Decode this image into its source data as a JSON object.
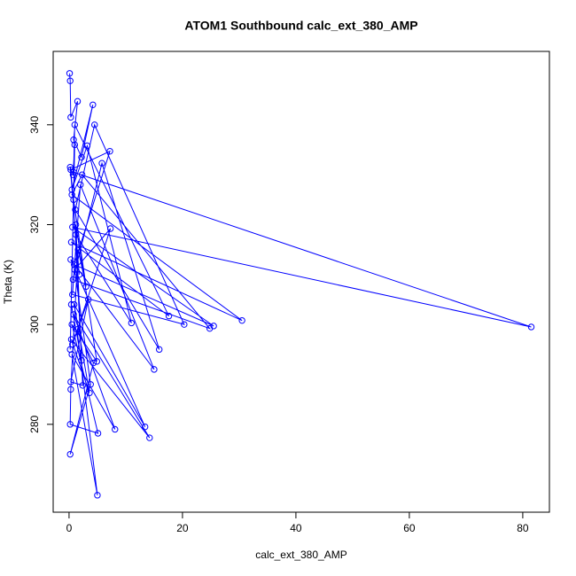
{
  "chart_data": {
    "type": "scatter",
    "lines": true,
    "title": "ATOM1 Southbound calc_ext_380_AMP",
    "x_label": "calc_ext_380_AMP",
    "y_label": "Theta (K)",
    "color": "#0000ff",
    "xlim": [
      -2.8,
      84.7
    ],
    "ylim": [
      262.4,
      354.7
    ],
    "xticks": [
      0,
      20,
      40,
      60,
      80
    ],
    "yticks": [
      280,
      300,
      320,
      340
    ],
    "x": [
      0.1,
      0.2,
      0.3,
      1.5,
      0.8,
      2.2,
      4.2,
      0.5,
      3.2,
      11.0,
      1.2,
      0.3,
      7.2,
      0.9,
      25.5,
      0.6,
      81.5,
      0.8,
      1.0,
      17.6,
      0.4,
      30.5,
      0.5,
      2.3,
      24.8,
      0.7,
      5.8,
      15.9,
      1.1,
      4.5,
      20.3,
      0.6,
      2.0,
      15.0,
      0.3,
      13.4,
      0.9,
      3.6,
      0.4,
      14.2,
      0.8,
      8.1,
      0.5,
      5.0,
      1.4,
      4.3,
      0.2,
      3.8,
      1.0,
      7.3,
      0.6,
      3.4,
      0.3,
      2.4,
      1.2,
      4.9,
      0.5,
      5.1,
      0.2,
      0.3,
      1.6,
      3.0,
      0.8,
      2.2,
      0.4,
      0.2,
      1.0,
      0.7,
      0.2,
      1.8
    ],
    "values": [
      350.3,
      348.8,
      341.5,
      344.7,
      337,
      333.5,
      344.0,
      327,
      335.8,
      300.3,
      318,
      331,
      334.7,
      312,
      299.7,
      319.5,
      299.5,
      330.5,
      340,
      301.7,
      316.5,
      300.8,
      326,
      330,
      299.2,
      309,
      332.3,
      295,
      323,
      340,
      300,
      306,
      328,
      291,
      313,
      279.5,
      304,
      286.3,
      297,
      277.3,
      302,
      279,
      294,
      265.8,
      299,
      292.3,
      274,
      288,
      311,
      319.2,
      296,
      305,
      288.5,
      287.8,
      320,
      292.6,
      300,
      278.2,
      280,
      287,
      315,
      307.6,
      325,
      292.8,
      304,
      295,
      336,
      330,
      331.5,
      310
    ]
  }
}
